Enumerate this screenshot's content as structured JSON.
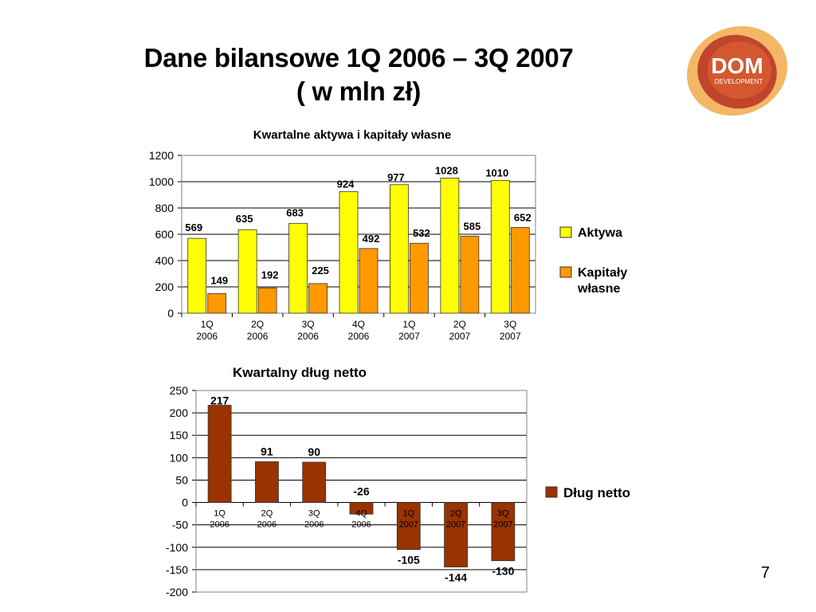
{
  "slide": {
    "title_line1": "Dane bilansowe 1Q 2006 – 3Q 2007",
    "title_line2": "( w mln zł)",
    "page_number": "7"
  },
  "logo": {
    "text_main": "DOM",
    "text_sub": "DEVELOPMENT",
    "colors": [
      "#e8a04a",
      "#c0392b",
      "#f4b860"
    ]
  },
  "chart_data": [
    {
      "type": "bar",
      "title": "Kwartalne aktywa i kapitały własne",
      "categories": [
        [
          "1Q",
          "2006"
        ],
        [
          "2Q",
          "2006"
        ],
        [
          "3Q",
          "2006"
        ],
        [
          "4Q",
          "2006"
        ],
        [
          "1Q",
          "2007"
        ],
        [
          "2Q",
          "2007"
        ],
        [
          "3Q",
          "2007"
        ]
      ],
      "series": [
        {
          "name": "Aktywa",
          "values": [
            569,
            635,
            683,
            924,
            977,
            1028,
            1010
          ],
          "color": "#ffff00"
        },
        {
          "name": "Kapitały własne",
          "legend_lines": [
            "Kapitały",
            "własne"
          ],
          "values": [
            149,
            192,
            225,
            492,
            532,
            585,
            652
          ],
          "color": "#ff9900"
        }
      ],
      "ylim": [
        0,
        1200
      ],
      "yticks": [
        0,
        200,
        400,
        600,
        800,
        1000,
        1200
      ],
      "grid": true,
      "legend": "right"
    },
    {
      "type": "bar",
      "title": "Kwartalny dług netto",
      "categories": [
        [
          "1Q",
          "2006"
        ],
        [
          "2Q",
          "2006"
        ],
        [
          "3Q",
          "2006"
        ],
        [
          "4Q",
          "2006"
        ],
        [
          "1Q",
          "2007"
        ],
        [
          "2Q",
          "2007"
        ],
        [
          "3Q",
          "2007"
        ]
      ],
      "series": [
        {
          "name": "Dług netto",
          "values": [
            217,
            91,
            90,
            -26,
            -105,
            -144,
            -130
          ],
          "color": "#993300"
        }
      ],
      "ylim": [
        -200,
        250
      ],
      "yticks": [
        -200,
        -150,
        -100,
        -50,
        0,
        50,
        100,
        150,
        200,
        250
      ],
      "grid": true,
      "legend": "right"
    }
  ]
}
